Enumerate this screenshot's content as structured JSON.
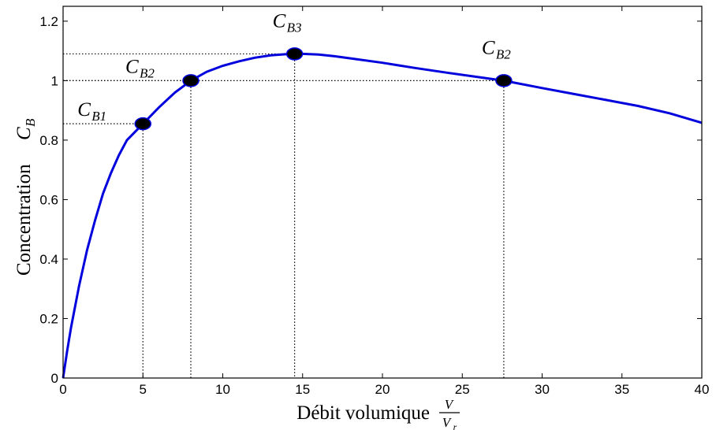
{
  "chart_data": {
    "type": "line",
    "xlabel": "Débit volumique",
    "xlabel_fraction": {
      "numerator": "V",
      "denominator": "V",
      "denominator_sub": "r"
    },
    "ylabel": "Concentration",
    "ylabel_symbol": {
      "main": "C",
      "sub": "B"
    },
    "xlim": [
      0,
      40
    ],
    "ylim": [
      0,
      1.25
    ],
    "xticks": [
      0,
      5,
      10,
      15,
      20,
      25,
      30,
      35,
      40
    ],
    "yticks": [
      0,
      0.2,
      0.4,
      0.6,
      0.8,
      1,
      1.2
    ],
    "grid": false,
    "series": [
      {
        "color": "#0000dd",
        "x": [
          0,
          0.25,
          0.5,
          1,
          1.5,
          2,
          2.5,
          3,
          3.5,
          4,
          5,
          6,
          7,
          8,
          9,
          10,
          11,
          12,
          13,
          14,
          14.5,
          15,
          16,
          17,
          18,
          20,
          22,
          24,
          26,
          27.6,
          30,
          32,
          34,
          36,
          38,
          40
        ],
        "y": [
          0,
          0.09,
          0.17,
          0.31,
          0.43,
          0.53,
          0.62,
          0.69,
          0.75,
          0.8,
          0.855,
          0.91,
          0.96,
          1.0,
          1.03,
          1.05,
          1.065,
          1.077,
          1.085,
          1.089,
          1.09,
          1.09,
          1.088,
          1.082,
          1.075,
          1.06,
          1.043,
          1.027,
          1.012,
          1.0,
          0.975,
          0.955,
          0.935,
          0.915,
          0.89,
          0.858
        ]
      }
    ],
    "markers": [
      {
        "label": "C",
        "sub": "B1",
        "x": 5,
        "y": 0.855,
        "label_side": "left"
      },
      {
        "label": "C",
        "sub": "B2",
        "x": 8,
        "y": 1.0,
        "label_side": "left"
      },
      {
        "label": "C",
        "sub": "B3",
        "x": 14.5,
        "y": 1.09,
        "label_side": "above"
      },
      {
        "label": "C",
        "sub": "B2",
        "x": 27.6,
        "y": 1.0,
        "label_side": "above"
      }
    ],
    "colors": {
      "line": "#0000dd",
      "marker_fill": "#000000",
      "marker_edge": "#0000dd",
      "guide": "#000000"
    }
  }
}
